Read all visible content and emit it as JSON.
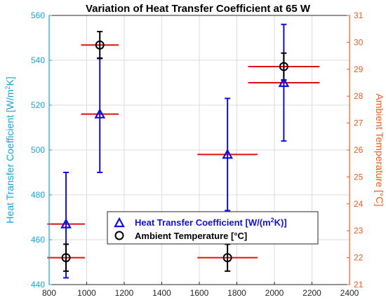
{
  "chart_data": {
    "type": "scatter",
    "title": "Variation of Heat Transfer Coefficient at 65 W",
    "xlabel": "",
    "xlim": [
      800,
      2400
    ],
    "xticks": [
      800,
      1000,
      1200,
      1400,
      1600,
      1800,
      2000,
      2200,
      2400
    ],
    "y_left": {
      "label": "Heat Transfer Coefficient [W/m²K]",
      "label_main": "Heat Transfer Coefficient [W/m",
      "label_sup": "2",
      "label_end": "K]",
      "lim": [
        440,
        560
      ],
      "ticks": [
        440,
        460,
        480,
        500,
        520,
        540,
        560
      ],
      "color": "#1aa3d9"
    },
    "y_right": {
      "label": "Ambient Temperature [°C]",
      "lim": [
        21,
        31
      ],
      "ticks": [
        21,
        22,
        23,
        24,
        25,
        26,
        27,
        28,
        29,
        30,
        31
      ],
      "color": "#f05a1e"
    },
    "grid": true,
    "legend_position": "lower-center",
    "series": [
      {
        "name": "Heat Transfer Coefficient [W/(m²K)]",
        "legend_main": "Heat Transfer Coefficient [W/(m",
        "legend_sup": "2",
        "legend_end": "K)]",
        "axis": "left",
        "marker": "triangle",
        "color": "#1010d8",
        "points": [
          {
            "x": 890,
            "y": 467,
            "ylow": 443,
            "yhigh": 490
          },
          {
            "x": 1070,
            "y": 516,
            "ylow": 490,
            "yhigh": 541
          },
          {
            "x": 1750,
            "y": 498,
            "ylow": 473,
            "yhigh": 523
          },
          {
            "x": 2050,
            "y": 530,
            "ylow": 504,
            "yhigh": 556
          }
        ]
      },
      {
        "name": "Ambient Temperature [°C]",
        "axis": "right",
        "marker": "circle",
        "color": "#000000",
        "points": [
          {
            "x": 890,
            "y": 22.0,
            "ylow": 21.5,
            "yhigh": 22.5
          },
          {
            "x": 1070,
            "y": 29.9,
            "ylow": 29.4,
            "yhigh": 30.4
          },
          {
            "x": 1750,
            "y": 22.0,
            "ylow": 21.5,
            "yhigh": 22.5
          },
          {
            "x": 2050,
            "y": 29.1,
            "ylow": 28.6,
            "yhigh": 29.6
          }
        ]
      }
    ],
    "horizontal_error_bars": {
      "color": "#e01010",
      "points": [
        {
          "x": 890,
          "axis": "left",
          "y": 467,
          "xlow": 790,
          "xhigh": 990
        },
        {
          "x": 890,
          "axis": "right",
          "y": 22.0,
          "xlow": 790,
          "xhigh": 990
        },
        {
          "x": 1070,
          "axis": "left",
          "y": 516,
          "xlow": 970,
          "xhigh": 1170
        },
        {
          "x": 1070,
          "axis": "right",
          "y": 29.9,
          "xlow": 970,
          "xhigh": 1170
        },
        {
          "x": 1750,
          "axis": "left",
          "y": 498,
          "xlow": 1590,
          "xhigh": 1910
        },
        {
          "x": 1750,
          "axis": "right",
          "y": 22.0,
          "xlow": 1590,
          "xhigh": 1910
        },
        {
          "x": 2050,
          "axis": "left",
          "y": 530,
          "xlow": 1860,
          "xhigh": 2240
        },
        {
          "x": 2050,
          "axis": "right",
          "y": 29.1,
          "xlow": 1860,
          "xhigh": 2240
        }
      ]
    }
  }
}
